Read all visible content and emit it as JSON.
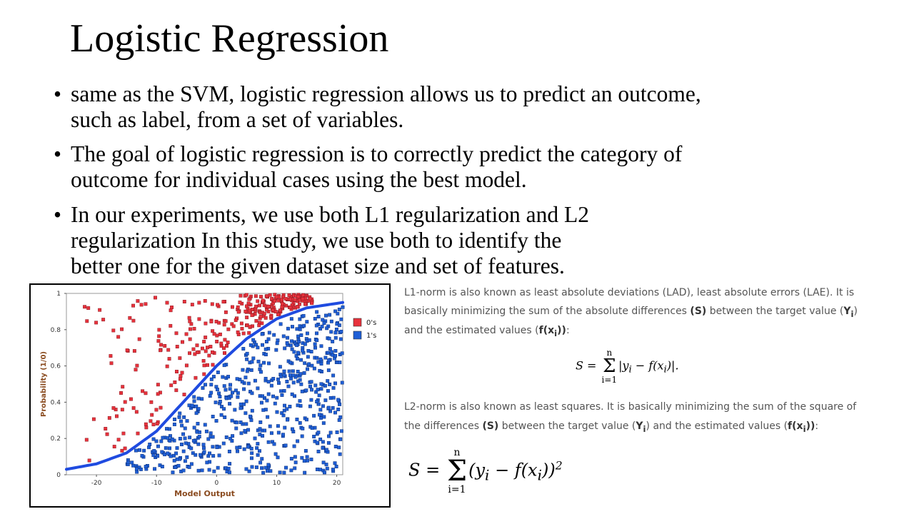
{
  "slide": {
    "title": "Logistic Regression",
    "bullets": [
      {
        "lines": [
          "same as the SVM, logistic regression allows us to predict an outcome,",
          "such as label, from a set of variables."
        ]
      },
      {
        "lines": [
          "The goal of logistic regression is to correctly predict the category of",
          "outcome for individual cases using the best model."
        ]
      },
      {
        "lines": [
          "In our experiments, we use both L1 regularization and L2",
          "regularization In this study, we use both to identify the",
          "better one for the given dataset size and set of features."
        ]
      }
    ],
    "bullet_glyph": "•"
  },
  "notes": {
    "l1": {
      "line1": "L1-norm is also known as least absolute deviations (LAD), least absolute errors (LAE). It is",
      "line2_a": "basically minimizing the sum of the absolute differences ",
      "line2_s": "(S)",
      "line2_b": " between the target value (",
      "line2_y": "Y",
      "line2_ysub": "i",
      "line2_c": ")",
      "line3_a": "and the estimated values (",
      "line3_f": "f(x",
      "line3_fsub": "i",
      "line3_fend": "))",
      "line3_b": ":"
    },
    "l2": {
      "line1": "L2-norm is also known as least squares. It is basically minimizing the sum of the square of",
      "line2_a": "the differences ",
      "line2_s": "(S)",
      "line2_b": " between the target value (",
      "line2_y": "Y",
      "line2_ysub": "i",
      "line2_c": ") and the estimated values (",
      "line2_f": "f(x",
      "line2_fsub": "i",
      "line2_fend": "))",
      "line2_d": ":"
    },
    "formula1": {
      "lhs": "S =",
      "upper": "n",
      "sigma": "Σ",
      "lower": "i=1",
      "body": "|y",
      "sub1": "i",
      "mid": " − f(x",
      "sub2": "i",
      "end": ")|."
    },
    "formula2": {
      "lhs": "S =",
      "upper": "n",
      "sigma": "Σ",
      "lower": "i=1",
      "body": "(y",
      "sub1": "i",
      "mid": " − f(x",
      "sub2": "i",
      "end": "))",
      "exp": "2"
    }
  },
  "chart_data": {
    "type": "scatter",
    "xlabel": "Model Output",
    "ylabel": "Probability (1/0)",
    "xlim": [
      -25,
      21
    ],
    "ylim": [
      0,
      1
    ],
    "x_ticks": [
      -20,
      -10,
      0,
      10,
      20
    ],
    "y_ticks": [
      0,
      0.2,
      0.4,
      0.6,
      0.8,
      1
    ],
    "x_tick_labels": [
      "-20",
      "-10",
      "0",
      "10",
      "20"
    ],
    "y_tick_labels": [
      "0",
      "0.2",
      "0.4",
      "0.6",
      "0.8",
      "1"
    ],
    "legend": [
      {
        "name": "0's",
        "color": "#e8323c"
      },
      {
        "name": "1's",
        "color": "#1f5fd6"
      }
    ],
    "legend_position": "top-right",
    "curve": {
      "color": "#1f4be0",
      "x": [
        -25,
        -20,
        -15,
        -10,
        -5,
        0,
        5,
        10,
        15,
        21
      ],
      "y": [
        0.03,
        0.06,
        0.12,
        0.24,
        0.42,
        0.6,
        0.75,
        0.86,
        0.92,
        0.95
      ]
    },
    "series": [
      {
        "name": "0's",
        "color": "#e8323c",
        "x_range": [
          -22,
          16
        ],
        "description": "points above the curve"
      },
      {
        "name": "1's",
        "color": "#1f5fd6",
        "x_range": [
          -15,
          21
        ],
        "description": "points below the curve"
      }
    ],
    "grid": false
  }
}
